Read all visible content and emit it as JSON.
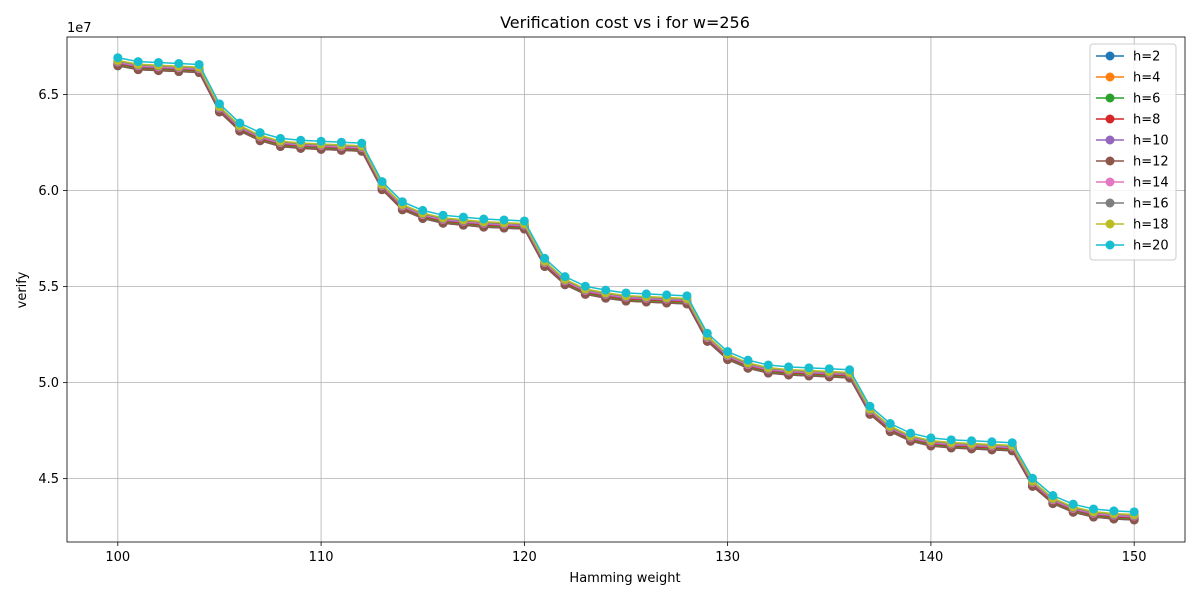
{
  "chart_data": {
    "type": "line",
    "title": "Verification cost vs i for w=256",
    "xlabel": "Hamming weight",
    "ylabel": "verify",
    "y_offset_label": "1e7",
    "y_scale": 10000000,
    "xlim": [
      97.5,
      152.5
    ],
    "ylim": [
      41700000,
      68000000
    ],
    "xticks": [
      100,
      110,
      120,
      130,
      140,
      150
    ],
    "xtick_labels": [
      "100",
      "110",
      "120",
      "130",
      "140",
      "150"
    ],
    "yticks": [
      45000000,
      50000000,
      55000000,
      60000000,
      65000000
    ],
    "ytick_labels": [
      "4.5",
      "5.0",
      "5.5",
      "6.0",
      "6.5"
    ],
    "grid": true,
    "legend_position": "top-right",
    "x": [
      100,
      101,
      102,
      103,
      104,
      105,
      106,
      107,
      108,
      109,
      110,
      111,
      112,
      113,
      114,
      115,
      116,
      117,
      118,
      119,
      120,
      121,
      122,
      123,
      124,
      125,
      126,
      127,
      128,
      129,
      130,
      131,
      132,
      133,
      134,
      135,
      136,
      137,
      138,
      139,
      140,
      141,
      142,
      143,
      144,
      145,
      146,
      147,
      148,
      149,
      150
    ],
    "base": [
      66500000,
      66300000,
      66250000,
      66200000,
      66150000,
      64100000,
      63100000,
      62600000,
      62300000,
      62200000,
      62150000,
      62100000,
      62050000,
      60050000,
      59000000,
      58550000,
      58300000,
      58200000,
      58100000,
      58050000,
      58000000,
      56050000,
      55100000,
      54600000,
      54400000,
      54250000,
      54200000,
      54150000,
      54100000,
      52150000,
      51200000,
      50750000,
      50500000,
      50400000,
      50350000,
      50300000,
      50250000,
      48350000,
      47450000,
      46950000,
      46700000,
      46600000,
      46550000,
      46500000,
      46450000,
      44600000,
      43700000,
      43250000,
      43000000,
      42900000,
      42850000
    ],
    "series": [
      {
        "name": "h=2",
        "color": "#1f77b4",
        "offset": 0
      },
      {
        "name": "h=4",
        "color": "#ff7f0e",
        "offset": 40000
      },
      {
        "name": "h=6",
        "color": "#2ca02c",
        "offset": 80000
      },
      {
        "name": "h=8",
        "color": "#d62728",
        "offset": 120000
      },
      {
        "name": "h=10",
        "color": "#9467bd",
        "offset": 160000
      },
      {
        "name": "h=12",
        "color": "#8c564b",
        "offset": 0
      },
      {
        "name": "h=14",
        "color": "#e377c2",
        "offset": 200000
      },
      {
        "name": "h=16",
        "color": "#7f7f7f",
        "offset": 240000
      },
      {
        "name": "h=18",
        "color": "#bcbd22",
        "offset": 280000
      },
      {
        "name": "h=20",
        "color": "#17becf",
        "offset": 420000
      }
    ]
  }
}
